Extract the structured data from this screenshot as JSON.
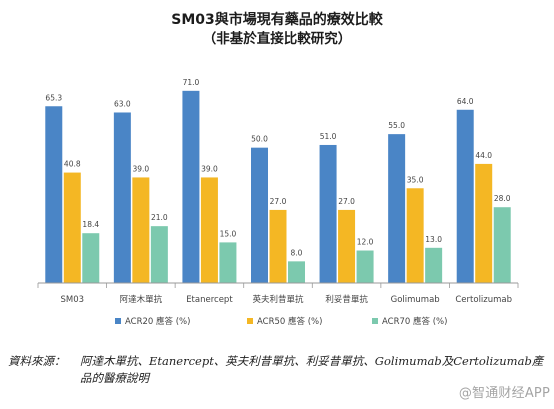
{
  "title": "SM03與市場現有藥品的療效比較",
  "subtitle": "（非基於直接比較研究）",
  "source_label": "資料來源：",
  "source_text": "阿達木單抗、Etanercept、英夫利昔單抗、利妥昔單抗、Golimumab及Certolizumab產品的醫療說明",
  "watermark": "@智通财经APP",
  "colors": {
    "acr20": "#4a85c6",
    "acr50": "#f4b724",
    "acr70": "#7cc9ae",
    "axis": "#999999",
    "label": "#555555"
  },
  "chart_data": {
    "type": "bar",
    "title": "SM03與市場現有藥品的療效比較",
    "subtitle": "（非基於直接比較研究）",
    "categories": [
      "SM03",
      "阿達木單抗",
      "Etanercept",
      "英夫利昔單抗",
      "利妥昔單抗",
      "Golimumab",
      "Certolizumab"
    ],
    "series": [
      {
        "name": "ACR20 應答 (%)",
        "values": [
          65.3,
          63.0,
          71.0,
          50.0,
          51.0,
          55.0,
          64.0
        ]
      },
      {
        "name": "ACR50 應答 (%)",
        "values": [
          40.8,
          39.0,
          39.0,
          27.0,
          27.0,
          35.0,
          44.0
        ]
      },
      {
        "name": "ACR70 應答 (%)",
        "values": [
          18.4,
          21.0,
          15.0,
          8.0,
          12.0,
          13.0,
          28.0
        ]
      }
    ],
    "ylim": [
      0,
      75
    ],
    "value_labels": true,
    "grid": false,
    "legend": "bottom-center"
  }
}
